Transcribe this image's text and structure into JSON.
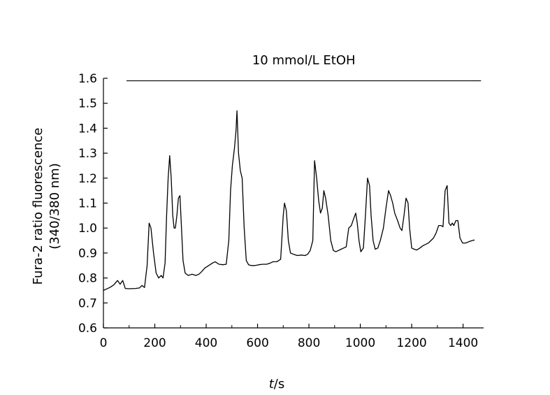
{
  "chart_data": {
    "type": "line",
    "xlabel_italic": "t",
    "xlabel_rest": "/s",
    "ylabel_line1": "Fura-2 ratio fluorescence",
    "ylabel_line2": "(340/380 nm)",
    "xlim": [
      0,
      1480
    ],
    "ylim": [
      0.6,
      1.6
    ],
    "xticks": [
      "0",
      "200",
      "400",
      "600",
      "800",
      "1000",
      "1200",
      "1400"
    ],
    "yticks": [
      "0.6",
      "0.7",
      "0.8",
      "0.9",
      "1.0",
      "1.1",
      "1.2",
      "1.3",
      "1.4",
      "1.5",
      "1.6"
    ],
    "grid": false,
    "annotations": [
      {
        "text": "10 mmol/L EtOH",
        "x_start": 90,
        "x_end": 1470,
        "y": 1.59
      }
    ],
    "series": [
      {
        "color": "#000000",
        "points": [
          [
            0,
            0.75
          ],
          [
            10,
            0.755
          ],
          [
            25,
            0.762
          ],
          [
            40,
            0.772
          ],
          [
            55,
            0.79
          ],
          [
            65,
            0.775
          ],
          [
            75,
            0.79
          ],
          [
            85,
            0.758
          ],
          [
            100,
            0.757
          ],
          [
            125,
            0.758
          ],
          [
            140,
            0.76
          ],
          [
            150,
            0.77
          ],
          [
            160,
            0.762
          ],
          [
            170,
            0.85
          ],
          [
            178,
            1.02
          ],
          [
            185,
            1.0
          ],
          [
            195,
            0.9
          ],
          [
            205,
            0.82
          ],
          [
            215,
            0.8
          ],
          [
            225,
            0.81
          ],
          [
            232,
            0.8
          ],
          [
            240,
            0.86
          ],
          [
            246,
            1.05
          ],
          [
            252,
            1.2
          ],
          [
            258,
            1.29
          ],
          [
            264,
            1.2
          ],
          [
            270,
            1.05
          ],
          [
            275,
            1.0
          ],
          [
            280,
            1.0
          ],
          [
            286,
            1.05
          ],
          [
            292,
            1.12
          ],
          [
            298,
            1.13
          ],
          [
            304,
            1.0
          ],
          [
            310,
            0.87
          ],
          [
            318,
            0.82
          ],
          [
            330,
            0.81
          ],
          [
            345,
            0.815
          ],
          [
            360,
            0.81
          ],
          [
            372,
            0.815
          ],
          [
            382,
            0.825
          ],
          [
            395,
            0.84
          ],
          [
            410,
            0.85
          ],
          [
            425,
            0.86
          ],
          [
            435,
            0.865
          ],
          [
            450,
            0.855
          ],
          [
            465,
            0.853
          ],
          [
            478,
            0.855
          ],
          [
            488,
            0.95
          ],
          [
            495,
            1.15
          ],
          [
            502,
            1.25
          ],
          [
            510,
            1.32
          ],
          [
            516,
            1.39
          ],
          [
            520,
            1.47
          ],
          [
            526,
            1.3
          ],
          [
            533,
            1.23
          ],
          [
            540,
            1.2
          ],
          [
            548,
            1.0
          ],
          [
            556,
            0.87
          ],
          [
            565,
            0.853
          ],
          [
            575,
            0.85
          ],
          [
            590,
            0.85
          ],
          [
            605,
            0.853
          ],
          [
            620,
            0.855
          ],
          [
            635,
            0.855
          ],
          [
            650,
            0.86
          ],
          [
            660,
            0.865
          ],
          [
            675,
            0.865
          ],
          [
            690,
            0.875
          ],
          [
            700,
            1.05
          ],
          [
            705,
            1.1
          ],
          [
            712,
            1.07
          ],
          [
            720,
            0.95
          ],
          [
            728,
            0.9
          ],
          [
            740,
            0.895
          ],
          [
            755,
            0.89
          ],
          [
            770,
            0.892
          ],
          [
            785,
            0.89
          ],
          [
            795,
            0.895
          ],
          [
            805,
            0.91
          ],
          [
            815,
            0.95
          ],
          [
            822,
            1.27
          ],
          [
            830,
            1.2
          ],
          [
            838,
            1.11
          ],
          [
            845,
            1.06
          ],
          [
            852,
            1.08
          ],
          [
            858,
            1.15
          ],
          [
            865,
            1.12
          ],
          [
            875,
            1.05
          ],
          [
            885,
            0.95
          ],
          [
            895,
            0.91
          ],
          [
            905,
            0.905
          ],
          [
            915,
            0.91
          ],
          [
            925,
            0.915
          ],
          [
            935,
            0.92
          ],
          [
            945,
            0.925
          ],
          [
            955,
            1.0
          ],
          [
            965,
            1.01
          ],
          [
            975,
            1.04
          ],
          [
            982,
            1.06
          ],
          [
            988,
            1.02
          ],
          [
            995,
            0.95
          ],
          [
            1002,
            0.905
          ],
          [
            1012,
            0.92
          ],
          [
            1020,
            1.05
          ],
          [
            1028,
            1.2
          ],
          [
            1036,
            1.17
          ],
          [
            1042,
            1.05
          ],
          [
            1050,
            0.95
          ],
          [
            1058,
            0.915
          ],
          [
            1068,
            0.92
          ],
          [
            1078,
            0.95
          ],
          [
            1090,
            1.0
          ],
          [
            1100,
            1.08
          ],
          [
            1110,
            1.15
          ],
          [
            1118,
            1.13
          ],
          [
            1126,
            1.1
          ],
          [
            1134,
            1.06
          ],
          [
            1145,
            1.03
          ],
          [
            1155,
            1.0
          ],
          [
            1162,
            0.99
          ],
          [
            1170,
            1.05
          ],
          [
            1178,
            1.12
          ],
          [
            1186,
            1.1
          ],
          [
            1192,
            1.0
          ],
          [
            1200,
            0.92
          ],
          [
            1210,
            0.915
          ],
          [
            1220,
            0.912
          ],
          [
            1232,
            0.92
          ],
          [
            1245,
            0.93
          ],
          [
            1255,
            0.935
          ],
          [
            1265,
            0.94
          ],
          [
            1275,
            0.95
          ],
          [
            1285,
            0.96
          ],
          [
            1295,
            0.98
          ],
          [
            1305,
            1.01
          ],
          [
            1315,
            1.01
          ],
          [
            1322,
            1.005
          ],
          [
            1330,
            1.15
          ],
          [
            1338,
            1.17
          ],
          [
            1345,
            1.02
          ],
          [
            1352,
            1.01
          ],
          [
            1358,
            1.02
          ],
          [
            1364,
            1.01
          ],
          [
            1372,
            1.03
          ],
          [
            1380,
            1.03
          ],
          [
            1388,
            0.96
          ],
          [
            1398,
            0.94
          ],
          [
            1410,
            0.94
          ],
          [
            1422,
            0.945
          ],
          [
            1435,
            0.95
          ],
          [
            1445,
            0.952
          ]
        ]
      }
    ]
  }
}
